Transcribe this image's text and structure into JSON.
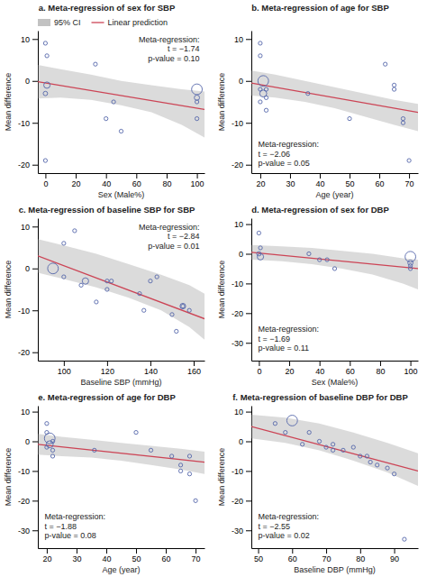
{
  "chart_data": [
    {
      "type": "scatter",
      "title": "a. Meta-regression of sex for SBP",
      "x_label": "Sex (Male%)",
      "y_label": "Mean difference",
      "xlim": [
        -5,
        105
      ],
      "xticks": [
        0,
        20,
        40,
        60,
        80,
        100
      ],
      "ylim": [
        -22,
        12
      ],
      "yticks": [
        -20,
        -10,
        0,
        10
      ],
      "grid": false,
      "legend": "top",
      "annotation": [
        "Meta-regression:",
        "t = −1.74",
        "p-value = 0.10"
      ],
      "series": [
        {
          "name": "95% CI",
          "type": "area",
          "color": "#999999",
          "x": [
            -5,
            10,
            30,
            50,
            70,
            90,
            105
          ],
          "upper": [
            3.8,
            2.8,
            1.5,
            0.0,
            -1.0,
            -2.0,
            -2.5
          ],
          "lower": [
            -4.2,
            -4.0,
            -4.5,
            -5.8,
            -7.5,
            -10.5,
            -13.5
          ]
        },
        {
          "name": "Linear prediction",
          "type": "line",
          "color": "#cc4455",
          "x": [
            -5,
            105
          ],
          "values": [
            -0.2,
            -6.8
          ]
        },
        {
          "type": "scatter",
          "color": "#5566aa",
          "marker": "circle",
          "x": [
            0,
            0,
            0,
            1,
            1,
            33,
            40,
            45,
            50,
            100,
            100,
            100,
            100
          ],
          "values": [
            -3,
            -19,
            9,
            6,
            -1,
            4,
            -9,
            -5,
            -12,
            -2,
            -4,
            -9,
            -5
          ],
          "sizes": [
            30,
            20,
            20,
            20,
            80,
            20,
            20,
            20,
            20,
            250,
            50,
            20,
            20
          ]
        }
      ]
    },
    {
      "type": "scatter",
      "title": "b. Meta-regression of age for SBP",
      "x_label": "Age (year)",
      "y_label": "Mean difference",
      "xlim": [
        17,
        73
      ],
      "xticks": [
        20,
        30,
        40,
        50,
        60,
        70
      ],
      "ylim": [
        -22,
        12
      ],
      "yticks": [
        -20,
        -10,
        0,
        10
      ],
      "grid": false,
      "annotation": [
        "Meta-regression:",
        "t = −2.06",
        "p-value = 0.05"
      ],
      "series": [
        {
          "type": "area",
          "color": "#999999",
          "x": [
            17,
            25,
            35,
            45,
            55,
            65,
            73
          ],
          "upper": [
            2.5,
            1.5,
            0.0,
            -1.5,
            -3.0,
            -4.5,
            -5.5
          ],
          "lower": [
            -3.5,
            -4.0,
            -5.0,
            -6.5,
            -8.5,
            -10.5,
            -12.0
          ]
        },
        {
          "type": "line",
          "color": "#cc4455",
          "x": [
            17,
            73
          ],
          "values": [
            -0.5,
            -7.5
          ]
        },
        {
          "type": "scatter",
          "color": "#5566aa",
          "marker": "circle",
          "x": [
            20,
            20,
            20,
            20,
            21,
            21,
            22,
            22,
            22,
            36,
            50,
            62,
            65,
            65,
            68,
            68,
            70
          ],
          "values": [
            9,
            6,
            -5,
            -2,
            0,
            -3,
            -2,
            -4,
            -7,
            -3,
            -9,
            4,
            -2,
            -1,
            -10,
            -9,
            -19
          ],
          "sizes": [
            20,
            20,
            20,
            20,
            250,
            100,
            20,
            20,
            20,
            20,
            20,
            20,
            20,
            20,
            20,
            20,
            20
          ]
        }
      ]
    },
    {
      "type": "scatter",
      "title": "c. Meta-regression of baseline SBP for SBP",
      "x_label": "Baseline SBP (mmHg)",
      "y_label": "Mean difference",
      "xlim": [
        88,
        165
      ],
      "xticks": [
        100,
        120,
        140,
        160
      ],
      "ylim": [
        -22,
        12
      ],
      "yticks": [
        -20,
        -10,
        0,
        10
      ],
      "grid": false,
      "annotation": [
        "Meta-regression:",
        "t = −2.84",
        "p-value = 0.01"
      ],
      "series": [
        {
          "type": "area",
          "color": "#999999",
          "x": [
            88,
            100,
            115,
            130,
            145,
            158,
            165
          ],
          "upper": [
            7.0,
            5.5,
            3.5,
            1.0,
            -1.5,
            -4.0,
            -6.0
          ],
          "lower": [
            -1.0,
            -2.5,
            -4.5,
            -7.0,
            -10.0,
            -14.0,
            -17.0
          ]
        },
        {
          "type": "line",
          "color": "#cc4455",
          "x": [
            88,
            165
          ],
          "values": [
            3,
            -12
          ]
        },
        {
          "type": "scatter",
          "color": "#5566aa",
          "marker": "circle",
          "x": [
            95,
            100,
            100,
            105,
            108,
            110,
            115,
            120,
            120,
            122,
            135,
            137,
            140,
            143,
            150,
            152,
            155,
            155,
            158
          ],
          "values": [
            0,
            6,
            -2,
            9,
            -4,
            -3,
            -8,
            -3,
            -5,
            -3,
            -6,
            -10,
            -3,
            -2,
            -11,
            -15,
            -9,
            -9,
            -10
          ],
          "sizes": [
            250,
            20,
            20,
            20,
            20,
            80,
            20,
            20,
            20,
            20,
            20,
            20,
            20,
            20,
            20,
            20,
            60,
            20,
            20
          ]
        }
      ]
    },
    {
      "type": "scatter",
      "title": "d. Meta-regression of sex for DBP",
      "x_label": "Sex (Male%)",
      "y_label": "Mean difference",
      "xlim": [
        -5,
        105
      ],
      "xticks": [
        0,
        20,
        40,
        60,
        80,
        100
      ],
      "ylim": [
        -36,
        12
      ],
      "yticks": [
        -30,
        -20,
        -10,
        0,
        10
      ],
      "grid": false,
      "annotation": [
        "Meta-regression:",
        "t = −1.69",
        "p-value = 0.11"
      ],
      "series": [
        {
          "type": "area",
          "color": "#999999",
          "x": [
            -5,
            15,
            35,
            55,
            75,
            95,
            105
          ],
          "upper": [
            3.0,
            2.5,
            2.0,
            1.0,
            0.0,
            -1.5,
            -2.0
          ],
          "lower": [
            -2.0,
            -2.5,
            -3.5,
            -5.0,
            -7.0,
            -10.0,
            -12.0
          ]
        },
        {
          "type": "line",
          "color": "#cc4455",
          "x": [
            -5,
            105
          ],
          "values": [
            0.5,
            -5.0
          ]
        },
        {
          "type": "scatter",
          "color": "#5566aa",
          "marker": "circle",
          "x": [
            0,
            0,
            1,
            1,
            33,
            40,
            45,
            50,
            100,
            100,
            100,
            100
          ],
          "values": [
            7,
            0,
            2,
            -1,
            0,
            -2,
            -2,
            -5,
            -1,
            -3,
            -5,
            -4
          ],
          "sizes": [
            20,
            30,
            20,
            80,
            20,
            20,
            20,
            20,
            250,
            50,
            20,
            20
          ]
        }
      ]
    },
    {
      "type": "scatter",
      "title": "e. Meta-regression of age for DBP",
      "x_label": "Age (year)",
      "y_label": "Mean difference",
      "xlim": [
        17,
        73
      ],
      "xticks": [
        20,
        30,
        40,
        50,
        60,
        70
      ],
      "ylim": [
        -36,
        12
      ],
      "yticks": [
        -30,
        -20,
        -10,
        0,
        10
      ],
      "grid": false,
      "annotation": [
        "Meta-regression:",
        "t = −1.88",
        "p-value = 0.08"
      ],
      "series": [
        {
          "type": "area",
          "color": "#999999",
          "x": [
            17,
            25,
            35,
            45,
            55,
            65,
            73
          ],
          "upper": [
            2.5,
            1.5,
            0.5,
            -0.5,
            -1.5,
            -2.5,
            -3.5
          ],
          "lower": [
            -4.5,
            -5.0,
            -5.5,
            -6.5,
            -8.0,
            -9.5,
            -11.0
          ]
        },
        {
          "type": "line",
          "color": "#cc4455",
          "x": [
            17,
            73
          ],
          "values": [
            -1,
            -7
          ]
        },
        {
          "type": "scatter",
          "color": "#5566aa",
          "marker": "circle",
          "x": [
            20,
            20,
            20,
            21,
            21,
            22,
            22,
            22,
            36,
            50,
            55,
            62,
            65,
            65,
            68,
            68,
            70
          ],
          "values": [
            6,
            3,
            -2,
            1,
            -1,
            0,
            -3,
            -5,
            -3,
            3,
            -3,
            -5,
            -8,
            -10,
            -5,
            -11,
            -20
          ],
          "sizes": [
            20,
            20,
            20,
            250,
            100,
            20,
            20,
            20,
            20,
            20,
            20,
            20,
            20,
            20,
            20,
            20,
            20
          ]
        }
      ]
    },
    {
      "type": "scatter",
      "title": "f. Meta-regression of baseline DBP for DBP",
      "x_label": "Baseline DBP (mmHg)",
      "y_label": "Mean difference",
      "xlim": [
        48,
        97
      ],
      "xticks": [
        50,
        60,
        70,
        80,
        90
      ],
      "ylim": [
        -36,
        12
      ],
      "yticks": [
        -30,
        -20,
        -10,
        0,
        10
      ],
      "grid": false,
      "annotation": [
        "Meta-regression:",
        "t = −2.55",
        "p-value = 0.02"
      ],
      "series": [
        {
          "type": "area",
          "color": "#999999",
          "x": [
            48,
            58,
            68,
            78,
            88,
            97
          ],
          "upper": [
            9.0,
            8.0,
            6.0,
            3.0,
            -0.5,
            -4.0
          ],
          "lower": [
            1.0,
            -0.5,
            -3.0,
            -6.5,
            -10.5,
            -15.0
          ]
        },
        {
          "type": "line",
          "color": "#cc4455",
          "x": [
            48,
            97
          ],
          "values": [
            5,
            -10
          ]
        },
        {
          "type": "scatter",
          "color": "#5566aa",
          "marker": "circle",
          "x": [
            55,
            58,
            60,
            63,
            65,
            68,
            70,
            72,
            72,
            75,
            78,
            80,
            82,
            83,
            85,
            88,
            90,
            93
          ],
          "values": [
            6,
            3,
            7,
            -1,
            3,
            0,
            -2,
            -3,
            -1,
            -3,
            -2,
            -5,
            -5,
            -7,
            -8,
            -9,
            -11,
            -33
          ],
          "sizes": [
            20,
            20,
            250,
            20,
            20,
            20,
            20,
            20,
            20,
            20,
            20,
            20,
            20,
            20,
            20,
            20,
            20,
            20
          ]
        }
      ]
    }
  ]
}
